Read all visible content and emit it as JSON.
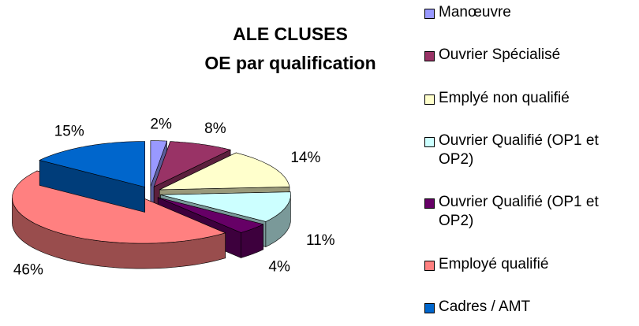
{
  "chart_data": {
    "type": "pie3d",
    "title": "ALE CLUSES",
    "subtitle": "OE par qualification",
    "categories": [
      "Manœuvre",
      "Ouvrier Spécialisé",
      "Emplyé non qualifié",
      "Ouvrier Qualifié (OP1 et OP2)",
      "Ouvrier Qualifié (OP1 et OP2)",
      "Employé qualifié",
      "Cadres / AMT"
    ],
    "values": [
      2,
      8,
      14,
      11,
      4,
      46,
      15
    ],
    "value_labels": [
      "2%",
      "8%",
      "14%",
      "11%",
      "4%",
      "46%",
      "15%"
    ],
    "colors": [
      "#9999ff",
      "#993366",
      "#ffffcc",
      "#ccffff",
      "#660066",
      "#ff8080",
      "#0066cc"
    ],
    "legend": "right"
  }
}
